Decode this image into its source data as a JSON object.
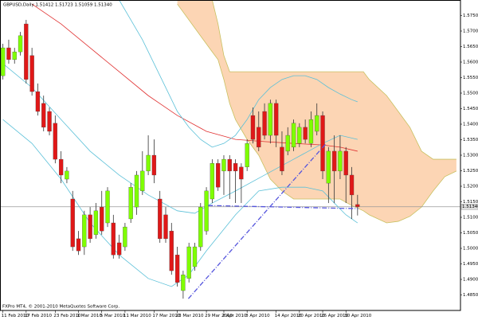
{
  "chart_data": {
    "type": "candlestick",
    "title": "GBPUSD,Daily 1.51412 1.51723 1.51059 1.51340",
    "footer": "FXPro MT4, © 2001-2010 MetaQuotes Software Corp.",
    "up_color": "#7fff00",
    "down_color": "#e01818",
    "xlim": [
      -0.5,
      78.7
    ],
    "xticks": [
      {
        "value": 0,
        "label": "11 Feb 2010"
      },
      {
        "value": 4,
        "label": "17 Feb 2010"
      },
      {
        "value": 9,
        "label": "23 Feb 2010"
      },
      {
        "value": 13,
        "label": "1 Mar 2010"
      },
      {
        "value": 17,
        "label": "5 Mar 2010"
      },
      {
        "value": 21,
        "label": "11 Mar 2010"
      },
      {
        "value": 26,
        "label": "17 Mar 2010"
      },
      {
        "value": 30,
        "label": "23 Mar 2010"
      },
      {
        "value": 35,
        "label": "29 Mar 2010"
      },
      {
        "value": 38,
        "label": "2 Apr 2010"
      },
      {
        "value": 42,
        "label": "8 Apr 2010"
      },
      {
        "value": 47,
        "label": "14 Apr 2010"
      },
      {
        "value": 51,
        "label": "20 Apr 2010"
      },
      {
        "value": 55,
        "label": "26 Apr 2010"
      },
      {
        "value": 59,
        "label": "30 Apr 2010"
      }
    ],
    "ylim": [
      1.48,
      1.58
    ],
    "yticks": [
      {
        "value": 1.485,
        "label": "1.48500"
      },
      {
        "value": 1.49,
        "label": "1.49000"
      },
      {
        "value": 1.495,
        "label": "1.49500"
      },
      {
        "value": 1.5,
        "label": "1.50000"
      },
      {
        "value": 1.505,
        "label": "1.50500"
      },
      {
        "value": 1.51,
        "label": "1.51000"
      },
      {
        "value": 1.515,
        "label": "1.51500"
      },
      {
        "value": 1.52,
        "label": "1.52000"
      },
      {
        "value": 1.525,
        "label": "1.52500"
      },
      {
        "value": 1.53,
        "label": "1.53000"
      },
      {
        "value": 1.535,
        "label": "1.53500"
      },
      {
        "value": 1.54,
        "label": "1.54000"
      },
      {
        "value": 1.545,
        "label": "1.54500"
      },
      {
        "value": 1.55,
        "label": "1.55000"
      },
      {
        "value": 1.555,
        "label": "1.55500"
      },
      {
        "value": 1.56,
        "label": "1.56000"
      },
      {
        "value": 1.565,
        "label": "1.56500"
      },
      {
        "value": 1.57,
        "label": "1.57000"
      },
      {
        "value": 1.575,
        "label": "1.57500"
      }
    ],
    "current_price": {
      "value": 1.5134,
      "label": "1.51340"
    },
    "x": [
      0,
      1,
      2,
      3,
      4,
      5,
      6,
      7,
      8,
      9,
      10,
      11,
      12,
      13,
      14,
      15,
      16,
      17,
      18,
      19,
      20,
      21,
      22,
      23,
      24,
      25,
      26,
      27,
      28,
      29,
      30,
      31,
      32,
      33,
      34,
      35,
      36,
      37,
      38,
      39,
      40,
      41,
      42,
      43,
      44,
      45,
      46,
      47,
      48,
      49,
      50,
      51,
      52,
      53,
      54,
      55,
      56,
      57,
      58,
      59,
      60,
      61
    ],
    "open": [
      1.5556,
      1.5646,
      1.5608,
      1.5633,
      1.5723,
      1.5621,
      1.5505,
      1.5467,
      1.5441,
      1.5403,
      1.5287,
      1.5223,
      1.5159,
      1.5031,
      1.5005,
      1.5108,
      1.5044,
      1.5133,
      1.5082,
      1.5082,
      1.5018,
      1.5005,
      1.5095,
      1.5133,
      1.5185,
      1.5249,
      1.53,
      1.5159,
      1.5108,
      1.5056,
      1.4979,
      1.4864,
      1.4903,
      1.4941,
      1.5005,
      1.5056,
      1.5159,
      1.5274,
      1.5249,
      1.5287,
      1.5274,
      1.5262,
      1.5262,
      1.5428,
      1.539,
      1.5441,
      1.5364,
      1.5467,
      1.5326,
      1.5313,
      1.5326,
      1.5338,
      1.539,
      1.5338,
      1.5377,
      1.5428,
      1.521,
      1.5313,
      1.5249,
      1.5313,
      1.5236,
      1.51412
    ],
    "high": [
      1.5659,
      1.5672,
      1.5646,
      1.5697,
      1.5736,
      1.5646,
      1.5531,
      1.5492,
      1.5454,
      1.5428,
      1.5313,
      1.5262,
      1.5185,
      1.5056,
      1.5121,
      1.5133,
      1.5146,
      1.5185,
      1.5197,
      1.5108,
      1.5044,
      1.5082,
      1.521,
      1.5249,
      1.5313,
      1.5364,
      1.5351,
      1.5185,
      1.5133,
      1.5082,
      1.5005,
      1.4928,
      1.5018,
      1.5018,
      1.5146,
      1.5197,
      1.5287,
      1.5287,
      1.53,
      1.53,
      1.5287,
      1.5274,
      1.5351,
      1.5454,
      1.5441,
      1.5467,
      1.5479,
      1.5479,
      1.5377,
      1.539,
      1.5415,
      1.5403,
      1.5415,
      1.5441,
      1.5467,
      1.5441,
      1.5326,
      1.5364,
      1.5364,
      1.5326,
      1.5262,
      1.51723
    ],
    "low": [
      1.5544,
      1.5595,
      1.5595,
      1.5621,
      1.5531,
      1.5492,
      1.5428,
      1.5377,
      1.5364,
      1.5274,
      1.521,
      1.521,
      1.4992,
      1.4979,
      1.4979,
      1.5018,
      1.5031,
      1.5044,
      1.5069,
      1.4967,
      1.4967,
      1.4992,
      1.5082,
      1.5108,
      1.5172,
      1.5236,
      1.521,
      1.5018,
      1.5018,
      1.4915,
      1.4877,
      1.4838,
      1.489,
      1.4928,
      1.4992,
      1.5044,
      1.5146,
      1.5185,
      1.5172,
      1.5159,
      1.5146,
      1.5146,
      1.5249,
      1.5338,
      1.5313,
      1.5351,
      1.5338,
      1.5326,
      1.5236,
      1.53,
      1.5313,
      1.5326,
      1.5338,
      1.5326,
      1.5364,
      1.5223,
      1.5146,
      1.5146,
      1.5223,
      1.5146,
      1.5095,
      1.51059
    ],
    "close": [
      1.5646,
      1.5608,
      1.5633,
      1.5685,
      1.5544,
      1.5505,
      1.5441,
      1.539,
      1.5377,
      1.5287,
      1.5236,
      1.5249,
      1.5005,
      1.4992,
      1.5108,
      1.5031,
      1.5121,
      1.5056,
      1.5185,
      1.4979,
      1.4979,
      1.5069,
      1.5197,
      1.5236,
      1.5249,
      1.53,
      1.5236,
      1.5031,
      1.5031,
      1.4928,
      1.489,
      1.4915,
      1.5005,
      1.5005,
      1.5133,
      1.5185,
      1.5274,
      1.5197,
      1.5287,
      1.5249,
      1.5249,
      1.5223,
      1.5338,
      1.5351,
      1.5326,
      1.5364,
      1.5467,
      1.5364,
      1.5249,
      1.5364,
      1.5403,
      1.539,
      1.5351,
      1.5415,
      1.5428,
      1.5249,
      1.5313,
      1.5249,
      1.5313,
      1.5236,
      1.5172,
      1.5134
    ],
    "cloud": {
      "fill": "#fcd5b4",
      "edge": "#c8c060",
      "x": [
        30,
        33,
        36,
        37,
        38,
        39,
        40,
        42,
        44,
        46,
        48,
        50,
        58,
        60,
        62,
        63,
        66,
        68,
        70,
        72,
        74,
        76,
        78
      ],
      "upper": [
        1.58,
        1.58,
        1.58,
        1.5723,
        1.5621,
        1.5569,
        1.5569,
        1.5569,
        1.5569,
        1.5569,
        1.5569,
        1.5569,
        1.5569,
        1.5569,
        1.5569,
        1.5544,
        1.5492,
        1.5441,
        1.539,
        1.5313,
        1.5287,
        1.5287,
        1.5287
      ],
      "lower": [
        1.5787,
        1.571,
        1.5633,
        1.5608,
        1.5544,
        1.5467,
        1.5415,
        1.5351,
        1.53,
        1.5223,
        1.5185,
        1.5159,
        1.5159,
        1.5138,
        1.5121,
        1.5108,
        1.5082,
        1.5087,
        1.5103,
        1.5133,
        1.5185,
        1.5231,
        1.5249
      ]
    },
    "series": [
      {
        "color": "#e03030",
        "x": [
          5,
          10,
          15,
          20,
          25,
          30,
          35,
          40,
          45,
          50,
          55,
          58,
          61
        ],
        "values": [
          1.5787,
          1.5723,
          1.5646,
          1.5569,
          1.5492,
          1.5428,
          1.5377,
          1.5351,
          1.5344,
          1.5338,
          1.5333,
          1.5326,
          1.5313
        ]
      },
      {
        "color": "#5bc0d8",
        "x": [
          20,
          22,
          24,
          26,
          28,
          30,
          32,
          34,
          36,
          38,
          40,
          42,
          44,
          46,
          48,
          50,
          52,
          54,
          56,
          58,
          60,
          61
        ],
        "values": [
          1.58,
          1.5736,
          1.5672,
          1.5595,
          1.5518,
          1.5441,
          1.539,
          1.5351,
          1.5326,
          1.5338,
          1.5364,
          1.5415,
          1.5479,
          1.5518,
          1.5544,
          1.5556,
          1.5556,
          1.5544,
          1.5518,
          1.5497,
          1.5479,
          1.5472
        ]
      },
      {
        "color": "#5bc0d8",
        "x": [
          0,
          5,
          10,
          15,
          20,
          25,
          30,
          33,
          36,
          40,
          45,
          50,
          55,
          58,
          61
        ],
        "values": [
          1.5595,
          1.5518,
          1.5415,
          1.5313,
          1.5236,
          1.5172,
          1.5121,
          1.5113,
          1.5146,
          1.5185,
          1.5236,
          1.5287,
          1.5338,
          1.5364,
          1.5351
        ]
      },
      {
        "color": "#5bc0d8",
        "x": [
          0,
          5,
          10,
          15,
          20,
          25,
          29,
          32,
          35,
          40,
          44,
          48,
          52,
          55,
          57,
          59,
          61
        ],
        "values": [
          1.5415,
          1.5338,
          1.5223,
          1.5082,
          1.4979,
          1.4903,
          1.4877,
          1.4915,
          1.4992,
          1.5108,
          1.5185,
          1.5197,
          1.5197,
          1.5185,
          1.5146,
          1.5108,
          1.5082
        ]
      }
    ],
    "trendlines": [
      {
        "color": "#5555dd",
        "x": [
          31.9,
          55.6
        ],
        "values": [
          1.4838,
          1.5338
        ]
      },
      {
        "color": "#5555dd",
        "x": [
          35.3,
          61.1
        ],
        "values": [
          1.5138,
          1.5128
        ]
      }
    ]
  }
}
